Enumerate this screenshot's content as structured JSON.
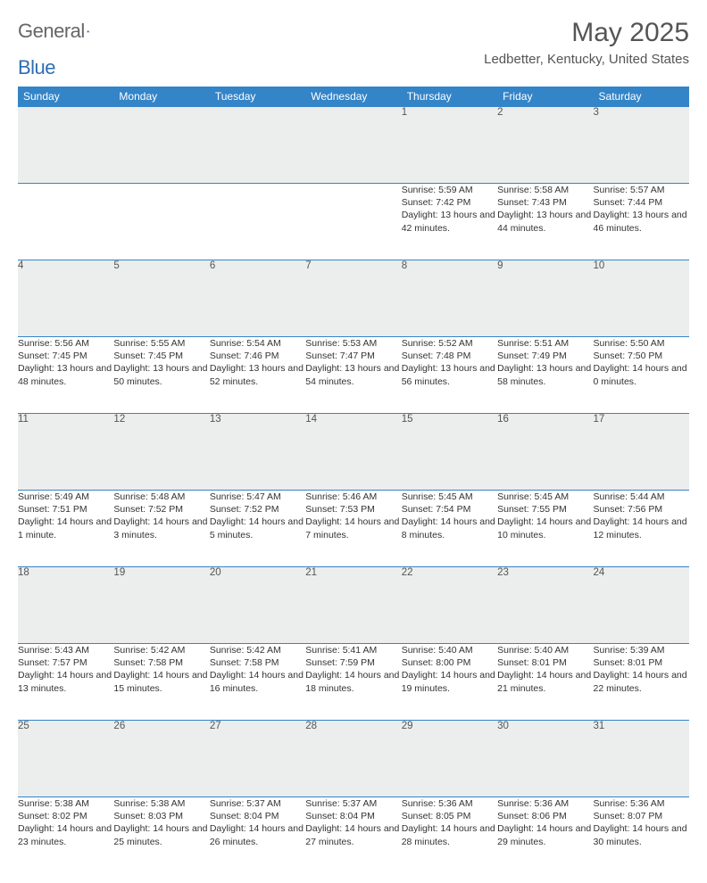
{
  "brand": {
    "text1": "General",
    "text2": "Blue"
  },
  "header": {
    "month_title": "May 2025",
    "location": "Ledbetter, Kentucky, United States"
  },
  "colors": {
    "header_bg": "#3484c8",
    "header_text": "#ffffff",
    "daynum_bg": "#eceded",
    "text_gray": "#555555",
    "border": "#3484c8"
  },
  "day_headers": [
    "Sunday",
    "Monday",
    "Tuesday",
    "Wednesday",
    "Thursday",
    "Friday",
    "Saturday"
  ],
  "weeks": [
    [
      {
        "n": "",
        "sunrise": "",
        "sunset": "",
        "daylight": ""
      },
      {
        "n": "",
        "sunrise": "",
        "sunset": "",
        "daylight": ""
      },
      {
        "n": "",
        "sunrise": "",
        "sunset": "",
        "daylight": ""
      },
      {
        "n": "",
        "sunrise": "",
        "sunset": "",
        "daylight": ""
      },
      {
        "n": "1",
        "sunrise": "Sunrise: 5:59 AM",
        "sunset": "Sunset: 7:42 PM",
        "daylight": "Daylight: 13 hours and 42 minutes."
      },
      {
        "n": "2",
        "sunrise": "Sunrise: 5:58 AM",
        "sunset": "Sunset: 7:43 PM",
        "daylight": "Daylight: 13 hours and 44 minutes."
      },
      {
        "n": "3",
        "sunrise": "Sunrise: 5:57 AM",
        "sunset": "Sunset: 7:44 PM",
        "daylight": "Daylight: 13 hours and 46 minutes."
      }
    ],
    [
      {
        "n": "4",
        "sunrise": "Sunrise: 5:56 AM",
        "sunset": "Sunset: 7:45 PM",
        "daylight": "Daylight: 13 hours and 48 minutes."
      },
      {
        "n": "5",
        "sunrise": "Sunrise: 5:55 AM",
        "sunset": "Sunset: 7:45 PM",
        "daylight": "Daylight: 13 hours and 50 minutes."
      },
      {
        "n": "6",
        "sunrise": "Sunrise: 5:54 AM",
        "sunset": "Sunset: 7:46 PM",
        "daylight": "Daylight: 13 hours and 52 minutes."
      },
      {
        "n": "7",
        "sunrise": "Sunrise: 5:53 AM",
        "sunset": "Sunset: 7:47 PM",
        "daylight": "Daylight: 13 hours and 54 minutes."
      },
      {
        "n": "8",
        "sunrise": "Sunrise: 5:52 AM",
        "sunset": "Sunset: 7:48 PM",
        "daylight": "Daylight: 13 hours and 56 minutes."
      },
      {
        "n": "9",
        "sunrise": "Sunrise: 5:51 AM",
        "sunset": "Sunset: 7:49 PM",
        "daylight": "Daylight: 13 hours and 58 minutes."
      },
      {
        "n": "10",
        "sunrise": "Sunrise: 5:50 AM",
        "sunset": "Sunset: 7:50 PM",
        "daylight": "Daylight: 14 hours and 0 minutes."
      }
    ],
    [
      {
        "n": "11",
        "sunrise": "Sunrise: 5:49 AM",
        "sunset": "Sunset: 7:51 PM",
        "daylight": "Daylight: 14 hours and 1 minute."
      },
      {
        "n": "12",
        "sunrise": "Sunrise: 5:48 AM",
        "sunset": "Sunset: 7:52 PM",
        "daylight": "Daylight: 14 hours and 3 minutes."
      },
      {
        "n": "13",
        "sunrise": "Sunrise: 5:47 AM",
        "sunset": "Sunset: 7:52 PM",
        "daylight": "Daylight: 14 hours and 5 minutes."
      },
      {
        "n": "14",
        "sunrise": "Sunrise: 5:46 AM",
        "sunset": "Sunset: 7:53 PM",
        "daylight": "Daylight: 14 hours and 7 minutes."
      },
      {
        "n": "15",
        "sunrise": "Sunrise: 5:45 AM",
        "sunset": "Sunset: 7:54 PM",
        "daylight": "Daylight: 14 hours and 8 minutes."
      },
      {
        "n": "16",
        "sunrise": "Sunrise: 5:45 AM",
        "sunset": "Sunset: 7:55 PM",
        "daylight": "Daylight: 14 hours and 10 minutes."
      },
      {
        "n": "17",
        "sunrise": "Sunrise: 5:44 AM",
        "sunset": "Sunset: 7:56 PM",
        "daylight": "Daylight: 14 hours and 12 minutes."
      }
    ],
    [
      {
        "n": "18",
        "sunrise": "Sunrise: 5:43 AM",
        "sunset": "Sunset: 7:57 PM",
        "daylight": "Daylight: 14 hours and 13 minutes."
      },
      {
        "n": "19",
        "sunrise": "Sunrise: 5:42 AM",
        "sunset": "Sunset: 7:58 PM",
        "daylight": "Daylight: 14 hours and 15 minutes."
      },
      {
        "n": "20",
        "sunrise": "Sunrise: 5:42 AM",
        "sunset": "Sunset: 7:58 PM",
        "daylight": "Daylight: 14 hours and 16 minutes."
      },
      {
        "n": "21",
        "sunrise": "Sunrise: 5:41 AM",
        "sunset": "Sunset: 7:59 PM",
        "daylight": "Daylight: 14 hours and 18 minutes."
      },
      {
        "n": "22",
        "sunrise": "Sunrise: 5:40 AM",
        "sunset": "Sunset: 8:00 PM",
        "daylight": "Daylight: 14 hours and 19 minutes."
      },
      {
        "n": "23",
        "sunrise": "Sunrise: 5:40 AM",
        "sunset": "Sunset: 8:01 PM",
        "daylight": "Daylight: 14 hours and 21 minutes."
      },
      {
        "n": "24",
        "sunrise": "Sunrise: 5:39 AM",
        "sunset": "Sunset: 8:01 PM",
        "daylight": "Daylight: 14 hours and 22 minutes."
      }
    ],
    [
      {
        "n": "25",
        "sunrise": "Sunrise: 5:38 AM",
        "sunset": "Sunset: 8:02 PM",
        "daylight": "Daylight: 14 hours and 23 minutes."
      },
      {
        "n": "26",
        "sunrise": "Sunrise: 5:38 AM",
        "sunset": "Sunset: 8:03 PM",
        "daylight": "Daylight: 14 hours and 25 minutes."
      },
      {
        "n": "27",
        "sunrise": "Sunrise: 5:37 AM",
        "sunset": "Sunset: 8:04 PM",
        "daylight": "Daylight: 14 hours and 26 minutes."
      },
      {
        "n": "28",
        "sunrise": "Sunrise: 5:37 AM",
        "sunset": "Sunset: 8:04 PM",
        "daylight": "Daylight: 14 hours and 27 minutes."
      },
      {
        "n": "29",
        "sunrise": "Sunrise: 5:36 AM",
        "sunset": "Sunset: 8:05 PM",
        "daylight": "Daylight: 14 hours and 28 minutes."
      },
      {
        "n": "30",
        "sunrise": "Sunrise: 5:36 AM",
        "sunset": "Sunset: 8:06 PM",
        "daylight": "Daylight: 14 hours and 29 minutes."
      },
      {
        "n": "31",
        "sunrise": "Sunrise: 5:36 AM",
        "sunset": "Sunset: 8:07 PM",
        "daylight": "Daylight: 14 hours and 30 minutes."
      }
    ]
  ]
}
